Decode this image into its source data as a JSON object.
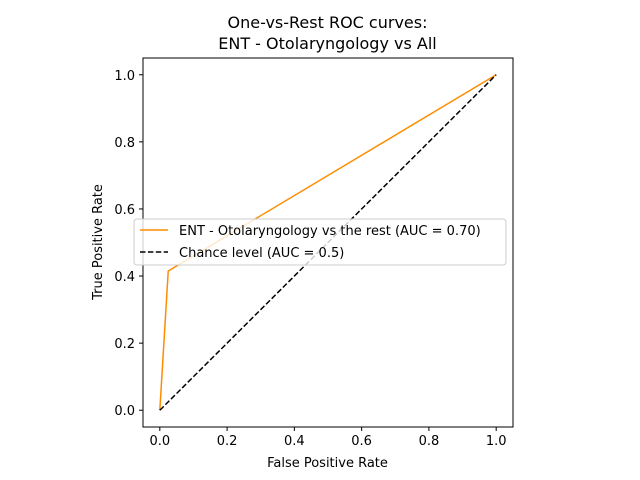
{
  "chart_data": {
    "type": "line",
    "title_lines": [
      "One-vs-Rest ROC curves:",
      "ENT - Otolaryngology vs All"
    ],
    "xlabel": "False Positive Rate",
    "ylabel": "True Positive Rate",
    "xlim": [
      -0.05,
      1.05
    ],
    "ylim": [
      -0.05,
      1.05
    ],
    "xticks": [
      0.0,
      0.2,
      0.4,
      0.6,
      0.8,
      1.0
    ],
    "yticks": [
      0.0,
      0.2,
      0.4,
      0.6,
      0.8,
      1.0
    ],
    "xtick_labels": [
      "0.0",
      "0.2",
      "0.4",
      "0.6",
      "0.8",
      "1.0"
    ],
    "ytick_labels": [
      "0.0",
      "0.2",
      "0.4",
      "0.6",
      "0.8",
      "1.0"
    ],
    "grid": false,
    "legend_placement": "center-right",
    "series": [
      {
        "name": "ENT - Otolaryngology vs the rest (AUC = 0.70)",
        "color": "#ff8c00",
        "dash": "solid",
        "x": [
          0.0,
          0.025,
          1.0
        ],
        "y": [
          0.0,
          0.415,
          1.0
        ]
      },
      {
        "name": "Chance level (AUC = 0.5)",
        "color": "#000000",
        "dash": "dashed",
        "x": [
          0.0,
          1.0
        ],
        "y": [
          0.0,
          1.0
        ]
      }
    ]
  }
}
